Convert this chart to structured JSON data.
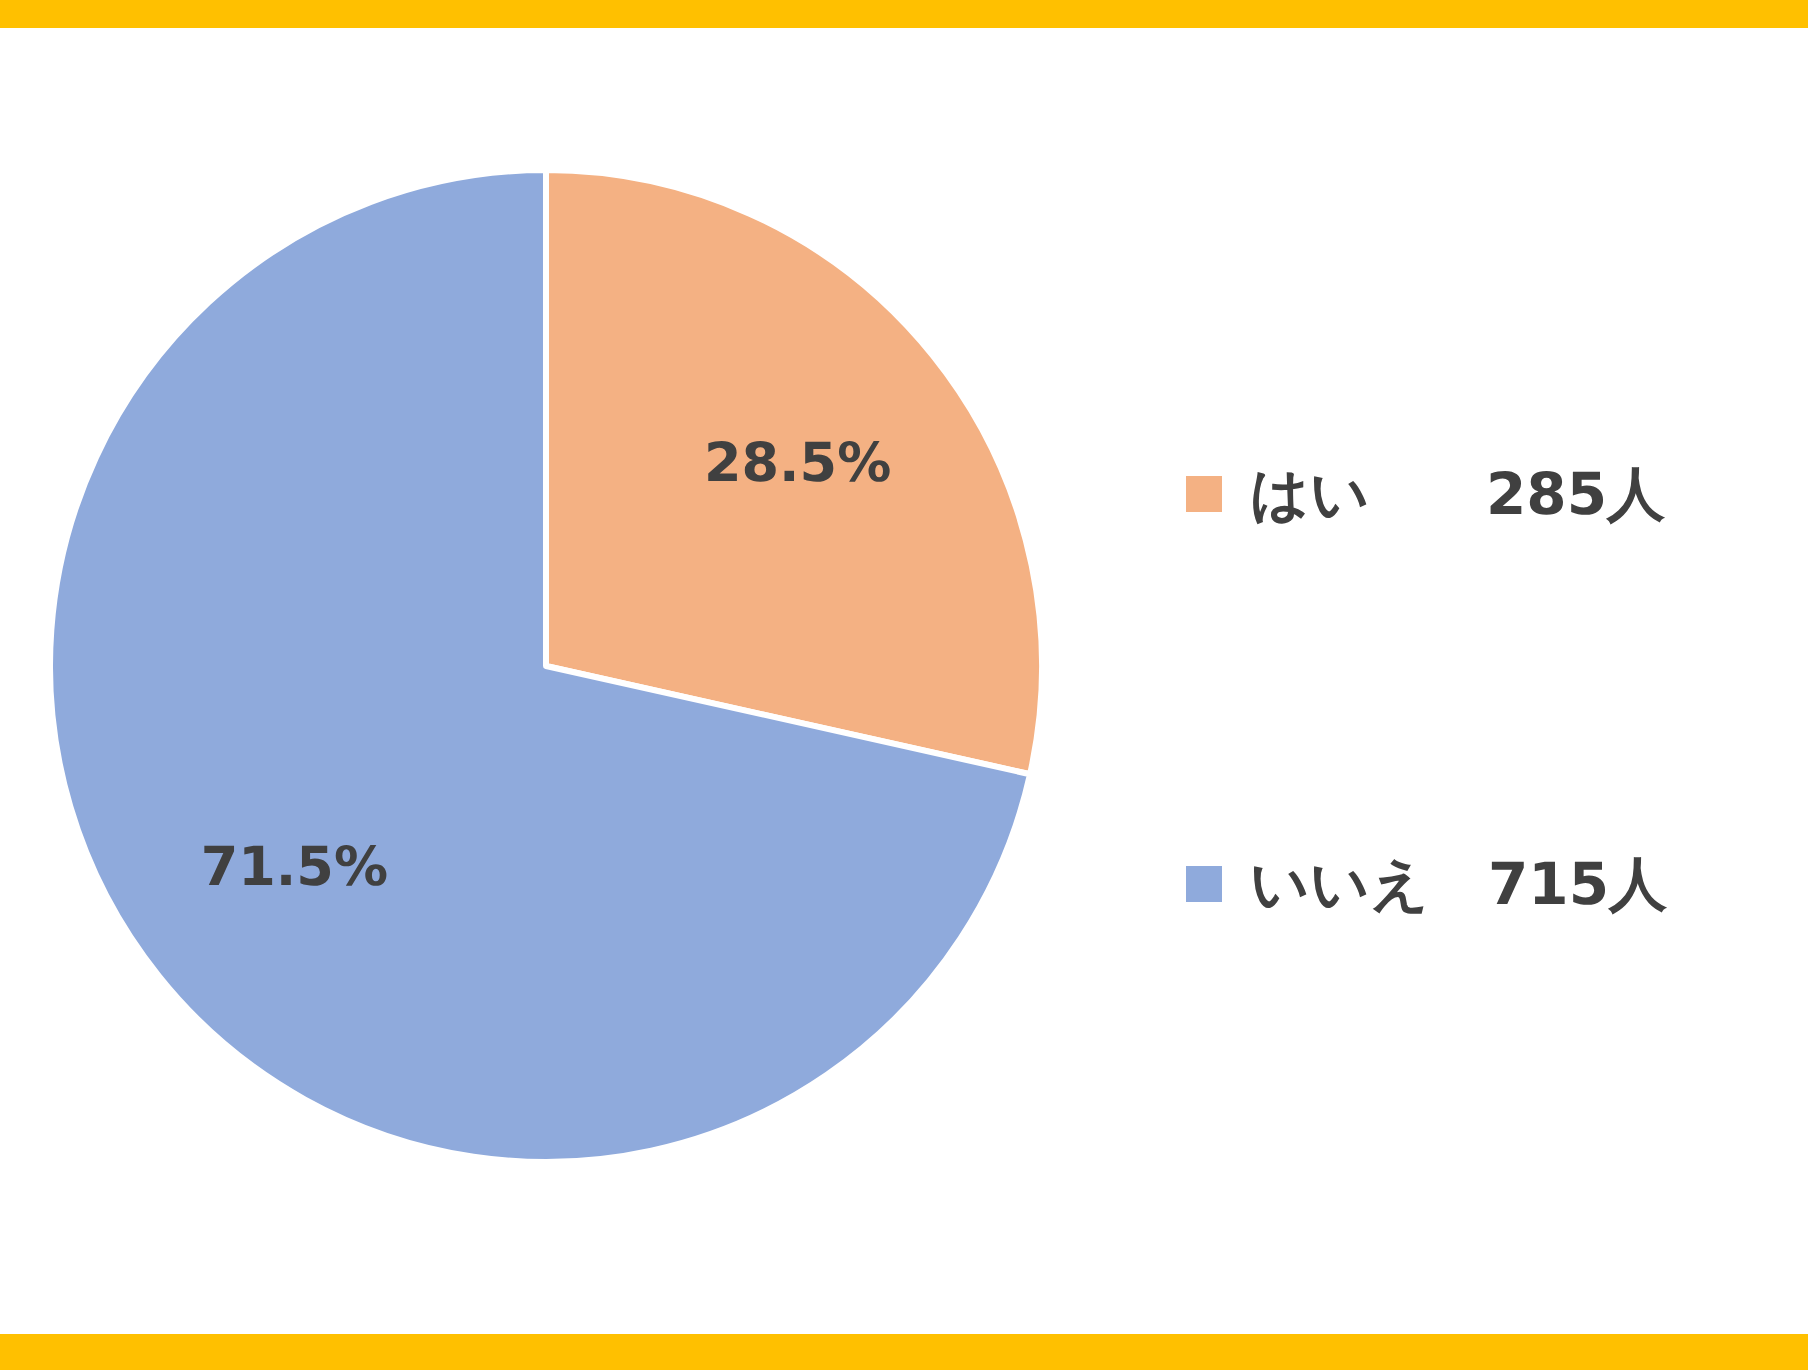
{
  "chart_data": {
    "type": "pie",
    "categories": [
      "はい　　285人",
      "いいえ　715人"
    ],
    "values": [
      28.5,
      71.5
    ],
    "value_labels": [
      "28.5%",
      "71.5%"
    ],
    "colors": [
      "#f4b183",
      "#8faadc"
    ],
    "legend": "right"
  }
}
